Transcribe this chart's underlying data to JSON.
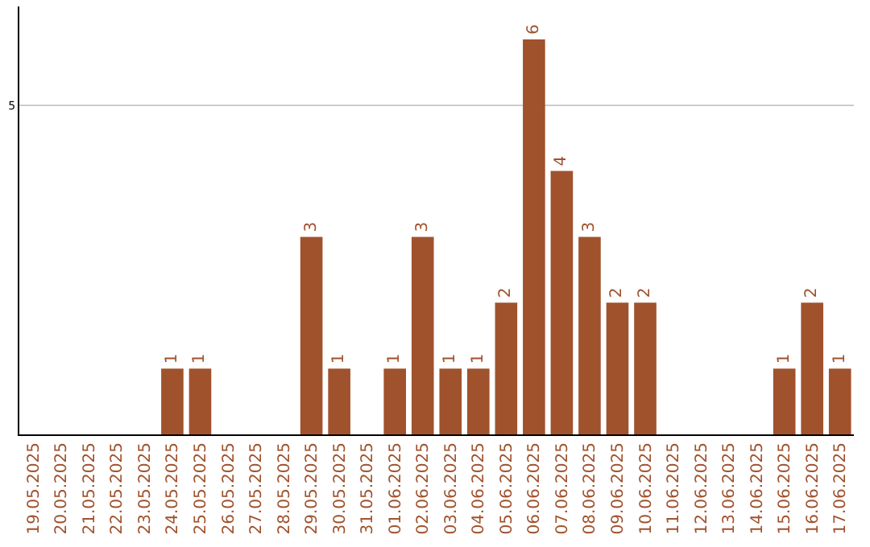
{
  "chart_data": {
    "type": "bar",
    "categories": [
      "19.05.2025",
      "20.05.2025",
      "21.05.2025",
      "22.05.2025",
      "23.05.2025",
      "24.05.2025",
      "25.05.2025",
      "26.05.2025",
      "27.05.2025",
      "28.05.2025",
      "29.05.2025",
      "30.05.2025",
      "31.05.2025",
      "01.06.2025",
      "02.06.2025",
      "03.06.2025",
      "04.06.2025",
      "05.06.2025",
      "06.06.2025",
      "07.06.2025",
      "08.06.2025",
      "09.06.2025",
      "10.06.2025",
      "11.06.2025",
      "12.06.2025",
      "13.06.2025",
      "14.06.2025",
      "15.06.2025",
      "16.06.2025",
      "17.06.2025"
    ],
    "values": [
      0,
      0,
      0,
      0,
      0,
      1,
      1,
      0,
      0,
      0,
      3,
      1,
      0,
      1,
      3,
      1,
      1,
      2,
      6,
      4,
      3,
      2,
      2,
      0,
      0,
      0,
      0,
      1,
      2,
      1
    ],
    "value_labels": [
      null,
      null,
      null,
      null,
      null,
      "1",
      "1",
      null,
      null,
      null,
      "3",
      "1",
      null,
      "1",
      "3",
      "1",
      "1",
      "2",
      "6",
      "4",
      "3",
      "2",
      "2",
      null,
      null,
      null,
      null,
      "1",
      "2",
      "1"
    ],
    "color": "#a0522d",
    "ylim": [
      0,
      6.5
    ],
    "yticks": [
      5
    ],
    "grid": "y",
    "legend": false
  }
}
